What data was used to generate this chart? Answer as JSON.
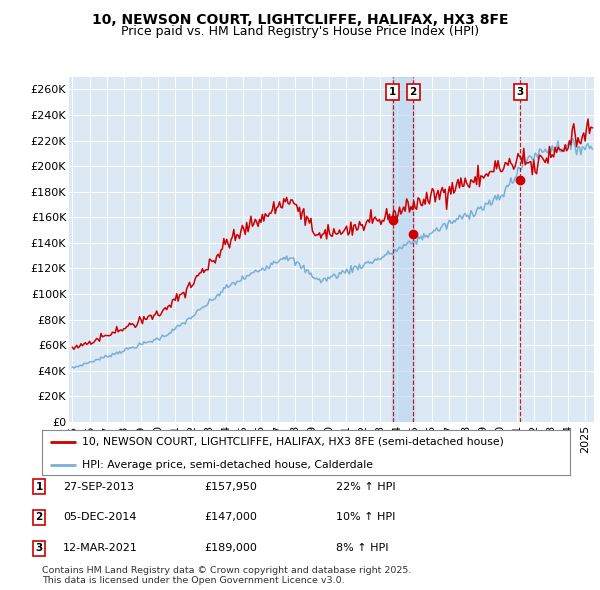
{
  "title": "10, NEWSON COURT, LIGHTCLIFFE, HALIFAX, HX3 8FE",
  "subtitle": "Price paid vs. HM Land Registry's House Price Index (HPI)",
  "background_color": "#ffffff",
  "plot_bg_color": "#dce9f5",
  "grid_color": "#ffffff",
  "ylim": [
    0,
    270000
  ],
  "xlim_start": 1994.8,
  "xlim_end": 2025.5,
  "yticks": [
    0,
    20000,
    40000,
    60000,
    80000,
    100000,
    120000,
    140000,
    160000,
    180000,
    200000,
    220000,
    240000,
    260000
  ],
  "ytick_labels": [
    "£0",
    "£20K",
    "£40K",
    "£60K",
    "£80K",
    "£100K",
    "£120K",
    "£140K",
    "£160K",
    "£180K",
    "£200K",
    "£220K",
    "£240K",
    "£260K"
  ],
  "xticks": [
    1995,
    1996,
    1997,
    1998,
    1999,
    2000,
    2001,
    2002,
    2003,
    2004,
    2005,
    2006,
    2007,
    2008,
    2009,
    2010,
    2011,
    2012,
    2013,
    2014,
    2015,
    2016,
    2017,
    2018,
    2019,
    2020,
    2021,
    2022,
    2023,
    2024,
    2025
  ],
  "red_line_color": "#cc0000",
  "blue_line_color": "#7aafd4",
  "sale_marker_color": "#cc0000",
  "sale_dates": [
    2013.74,
    2014.92,
    2021.19
  ],
  "sale_prices": [
    157950,
    147000,
    189000
  ],
  "sale_labels": [
    "1",
    "2",
    "3"
  ],
  "sale_info": [
    {
      "label": "1",
      "date": "27-SEP-2013",
      "price": "£157,950",
      "hpi": "22% ↑ HPI"
    },
    {
      "label": "2",
      "date": "05-DEC-2014",
      "price": "£147,000",
      "hpi": "10% ↑ HPI"
    },
    {
      "label": "3",
      "date": "12-MAR-2021",
      "price": "£189,000",
      "hpi": "8% ↑ HPI"
    }
  ],
  "legend_entries": [
    "10, NEWSON COURT, LIGHTCLIFFE, HALIFAX, HX3 8FE (semi-detached house)",
    "HPI: Average price, semi-detached house, Calderdale"
  ],
  "footer": "Contains HM Land Registry data © Crown copyright and database right 2025.\nThis data is licensed under the Open Government Licence v3.0.",
  "title_fontsize": 10,
  "subtitle_fontsize": 9,
  "tick_fontsize": 8
}
